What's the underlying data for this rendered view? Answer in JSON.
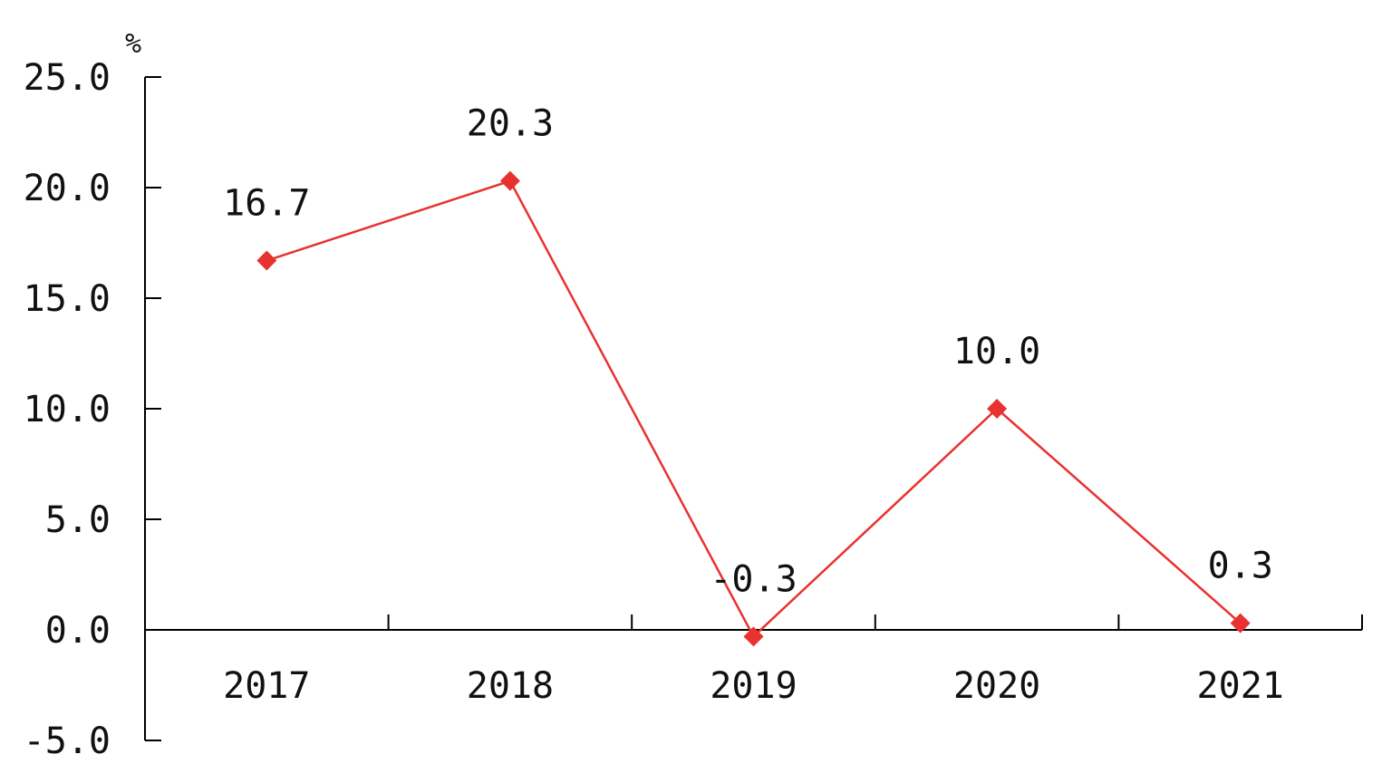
{
  "chart_data": {
    "type": "line",
    "unit_label": "%",
    "categories": [
      "2017",
      "2018",
      "2019",
      "2020",
      "2021"
    ],
    "series": [
      {
        "values": [
          16.7,
          20.3,
          -0.3,
          10.0,
          0.3
        ],
        "data_labels": [
          "16.7",
          "20.3",
          "-0.3",
          "10.0",
          "0.3"
        ],
        "color": "#e8322f"
      }
    ],
    "ylim": [
      -5.0,
      25.0
    ],
    "y_ticks": [
      25.0,
      20.0,
      15.0,
      10.0,
      5.0,
      0.0,
      -5.0
    ],
    "y_tick_labels": [
      "25.0",
      "20.0",
      "15.0",
      "10.0",
      "5.0",
      "0.0",
      "-5.0"
    ],
    "grid": false,
    "legend": "none"
  }
}
